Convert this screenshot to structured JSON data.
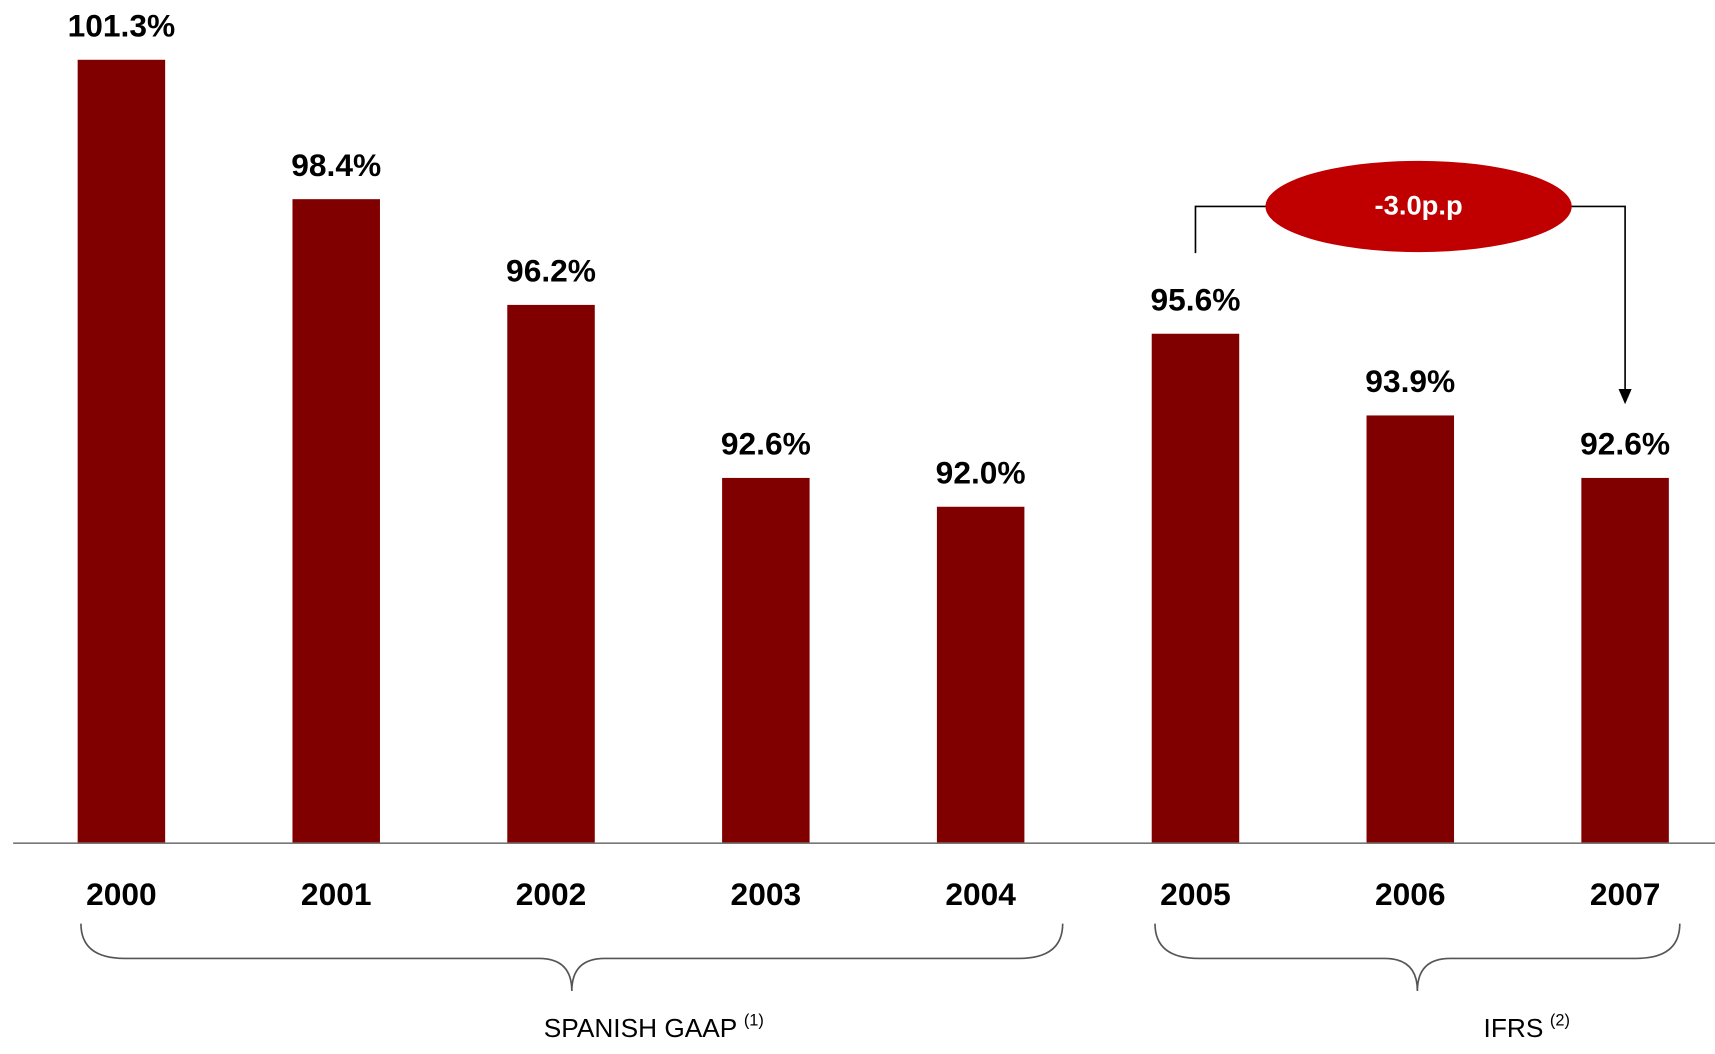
{
  "chart_data": {
    "type": "bar",
    "categories": [
      "2000",
      "2001",
      "2002",
      "2003",
      "2004",
      "2005",
      "2006",
      "2007"
    ],
    "values": [
      101.3,
      98.4,
      96.2,
      92.6,
      92.0,
      95.6,
      93.9,
      92.6
    ],
    "value_labels": [
      "101.3%",
      "98.4%",
      "96.2%",
      "92.6%",
      "92.0%",
      "95.6%",
      "93.9%",
      "92.6%"
    ],
    "color": "#800000",
    "ylim": [
      85,
      102
    ],
    "annotation": {
      "text": "-3.0p.p",
      "color": "#c00000"
    },
    "groups": [
      {
        "label": "SPANISH GAAP",
        "note": "(1)",
        "categories": [
          "2000",
          "2004"
        ]
      },
      {
        "label": "IFRS",
        "note": "(2)",
        "categories": [
          "2005",
          "2007"
        ]
      }
    ]
  }
}
